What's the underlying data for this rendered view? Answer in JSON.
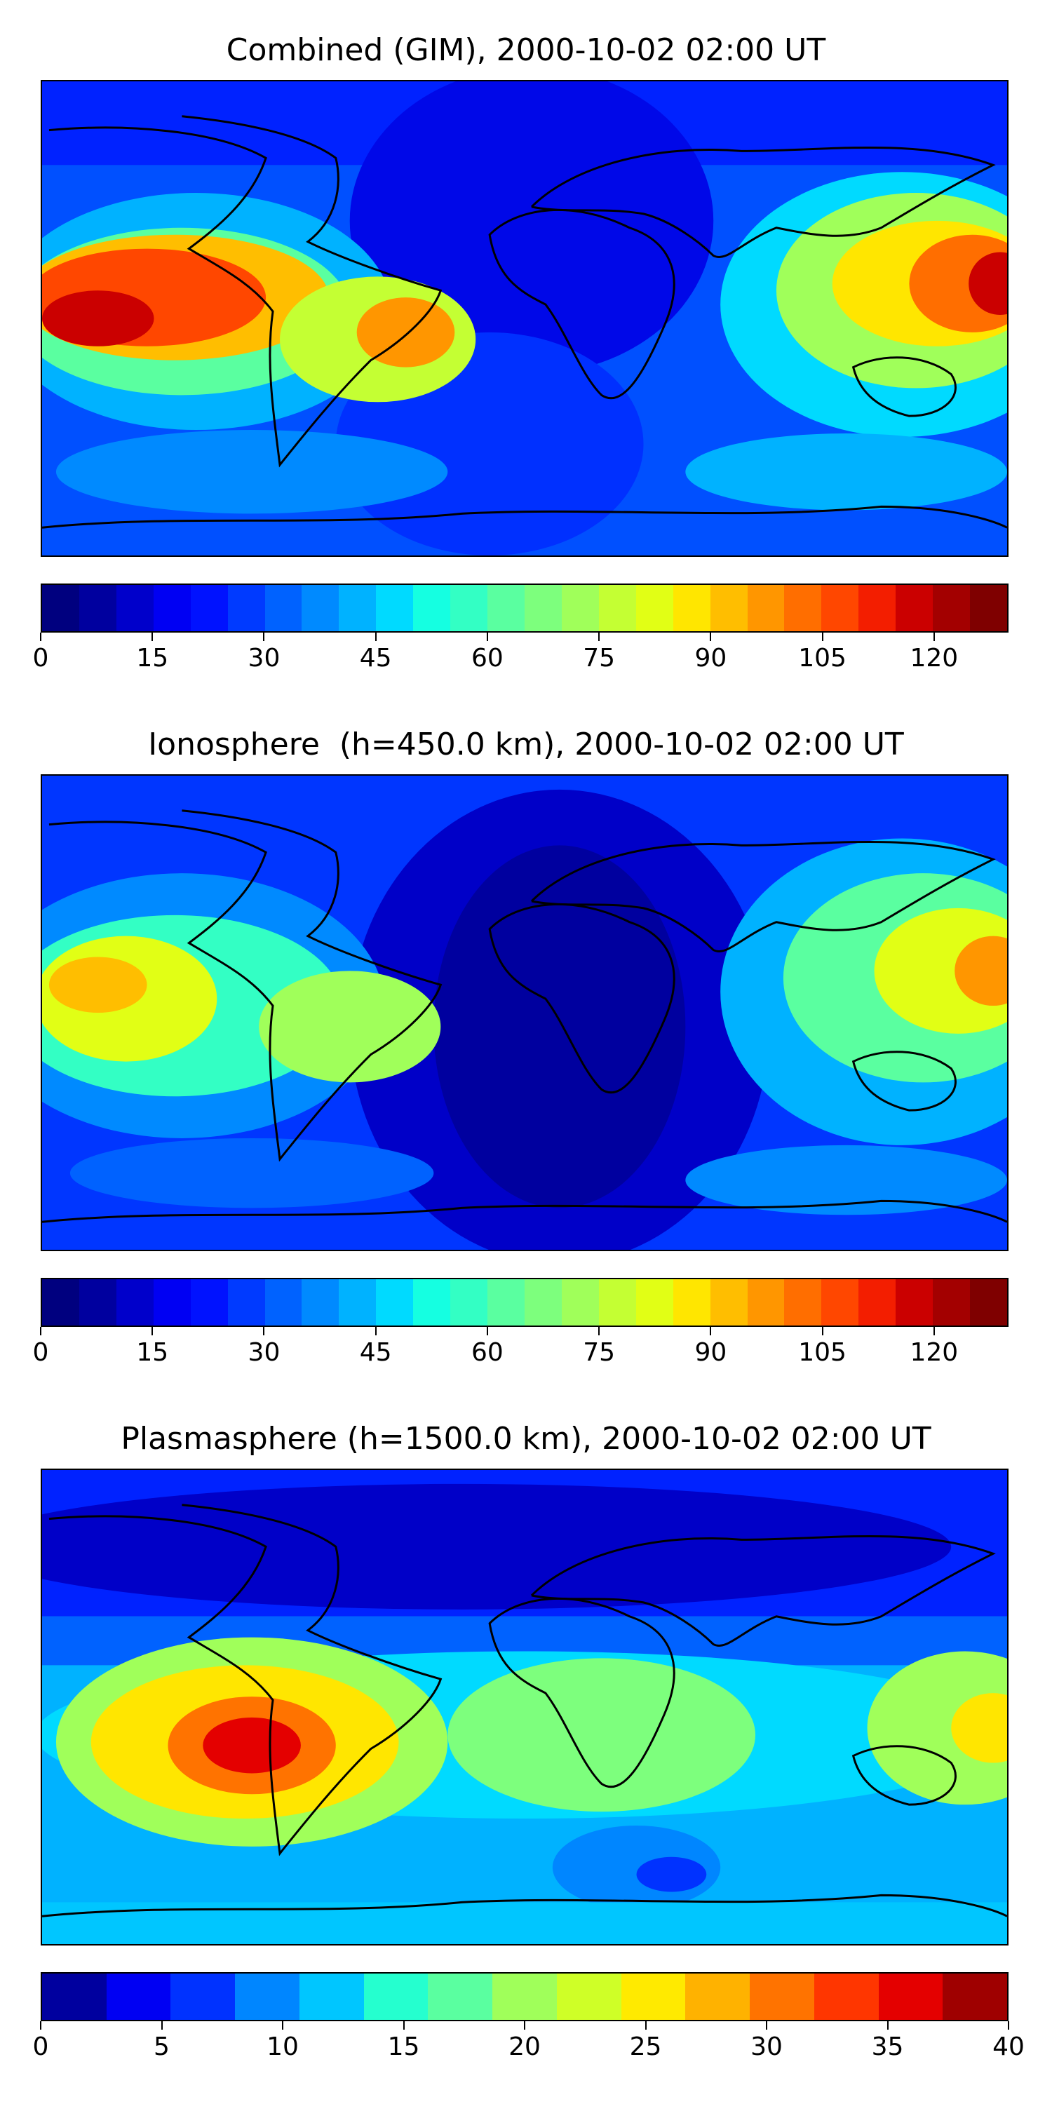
{
  "panels": [
    {
      "title": "Combined (GIM), 2000-10-02 02:00 UT",
      "colorbar": {
        "colors": [
          "#00007f",
          "#00009f",
          "#0000cb",
          "#0000f3",
          "#0012ff",
          "#003aff",
          "#0062ff",
          "#008aff",
          "#00b2ff",
          "#00daff",
          "#15ffe1",
          "#33ffc4",
          "#5affa0",
          "#7dff7d",
          "#a0ff5a",
          "#c4ff33",
          "#e1ff15",
          "#ffe600",
          "#ffbe00",
          "#ff9600",
          "#ff6e00",
          "#ff4700",
          "#f31e00",
          "#cb0000",
          "#a30000",
          "#7f0000"
        ],
        "ticks": [
          "0",
          "15",
          "30",
          "45",
          "60",
          "75",
          "90",
          "105",
          "120"
        ],
        "max": 130
      }
    },
    {
      "title": "Ionosphere  (h=450.0 km), 2000-10-02 02:00 UT",
      "colorbar": {
        "colors": [
          "#00007f",
          "#00009f",
          "#0000cb",
          "#0000f3",
          "#0012ff",
          "#003aff",
          "#0062ff",
          "#008aff",
          "#00b2ff",
          "#00daff",
          "#15ffe1",
          "#33ffc4",
          "#5affa0",
          "#7dff7d",
          "#a0ff5a",
          "#c4ff33",
          "#e1ff15",
          "#ffe600",
          "#ffbe00",
          "#ff9600",
          "#ff6e00",
          "#ff4700",
          "#f31e00",
          "#cb0000",
          "#a30000",
          "#7f0000"
        ],
        "ticks": [
          "0",
          "15",
          "30",
          "45",
          "60",
          "75",
          "90",
          "105",
          "120"
        ],
        "max": 130
      }
    },
    {
      "title": "Plasmasphere (h=1500.0 km), 2000-10-02 02:00 UT",
      "colorbar": {
        "colors": [
          "#00009f",
          "#0000f3",
          "#0032ff",
          "#0086ff",
          "#00c6ff",
          "#25ffcf",
          "#5affa0",
          "#a0ff5a",
          "#cfff27",
          "#ffea00",
          "#ffb200",
          "#ff7300",
          "#ff3600",
          "#e40000",
          "#9f0000"
        ],
        "ticks": [
          "0",
          "5",
          "10",
          "15",
          "20",
          "25",
          "30",
          "35",
          "40"
        ],
        "max": 40
      }
    }
  ]
}
